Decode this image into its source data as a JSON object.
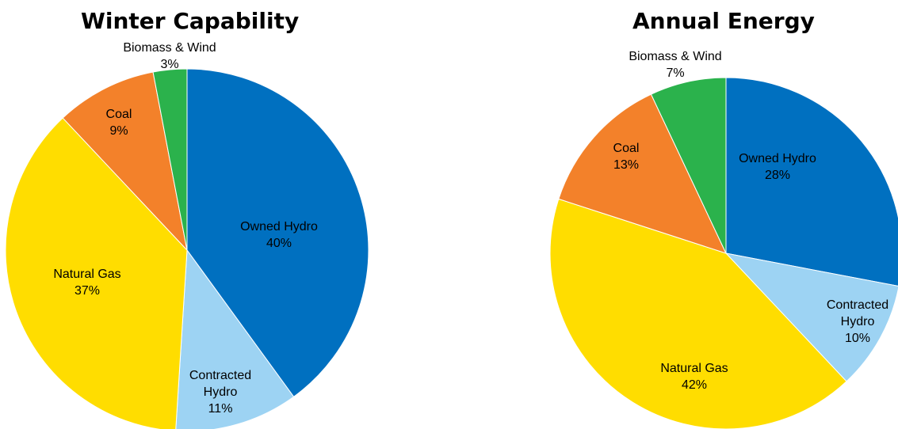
{
  "chart_data": [
    {
      "type": "pie",
      "title": "Winter Capability",
      "slices": [
        {
          "label": "Owned Hydro",
          "value": 40,
          "value_label": "40%",
          "color": "#0070C0"
        },
        {
          "label": "Contracted Hydro",
          "value": 11,
          "value_label": "11%",
          "color": "#9DD3F3"
        },
        {
          "label": "Natural Gas",
          "value": 37,
          "value_label": "37%",
          "color": "#FFDD00"
        },
        {
          "label": "Coal",
          "value": 9,
          "value_label": "9%",
          "color": "#F3812A"
        },
        {
          "label": "Biomass & Wind",
          "value": 3,
          "value_label": "3%",
          "color": "#2BB24C"
        }
      ]
    },
    {
      "type": "pie",
      "title": "Annual Energy",
      "slices": [
        {
          "label": "Owned Hydro",
          "value": 28,
          "value_label": "28%",
          "color": "#0070C0"
        },
        {
          "label": "Contracted Hydro",
          "value": 10,
          "value_label": "10%",
          "color": "#9DD3F3"
        },
        {
          "label": "Natural Gas",
          "value": 42,
          "value_label": "42%",
          "color": "#FFDD00"
        },
        {
          "label": "Coal",
          "value": 13,
          "value_label": "13%",
          "color": "#F3812A"
        },
        {
          "label": "Biomass & Wind",
          "value": 7,
          "value_label": "7%",
          "color": "#2BB24C"
        }
      ]
    }
  ]
}
